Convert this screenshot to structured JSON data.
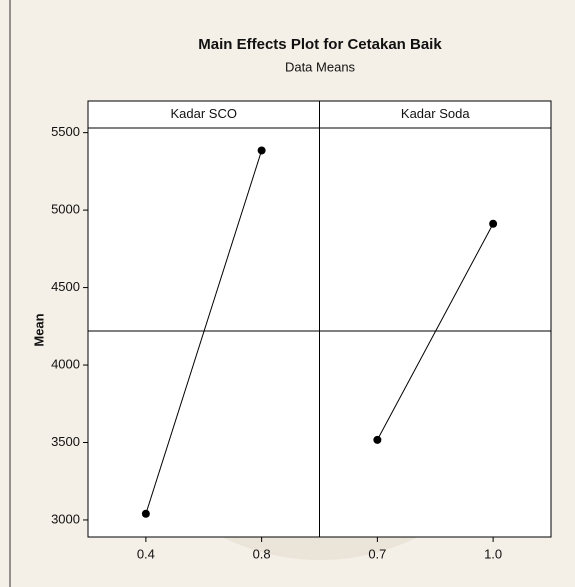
{
  "chart_data": {
    "type": "line",
    "title": "Main Effects Plot for Cetakan Baik",
    "subtitle": "Data Means",
    "y_label": "Mean",
    "ylim": [
      2890,
      5530
    ],
    "yticks": [
      3000,
      3500,
      4000,
      4500,
      5000,
      5500
    ],
    "reference_line": 4220,
    "color": "#000000",
    "panels": [
      {
        "title": "Kadar SCO",
        "categories": [
          "0.4",
          "0.8"
        ],
        "values": [
          3040,
          5385
        ]
      },
      {
        "title": "Kadar Soda",
        "categories": [
          "0.7",
          "1.0"
        ],
        "values": [
          3517,
          4912
        ]
      }
    ]
  }
}
